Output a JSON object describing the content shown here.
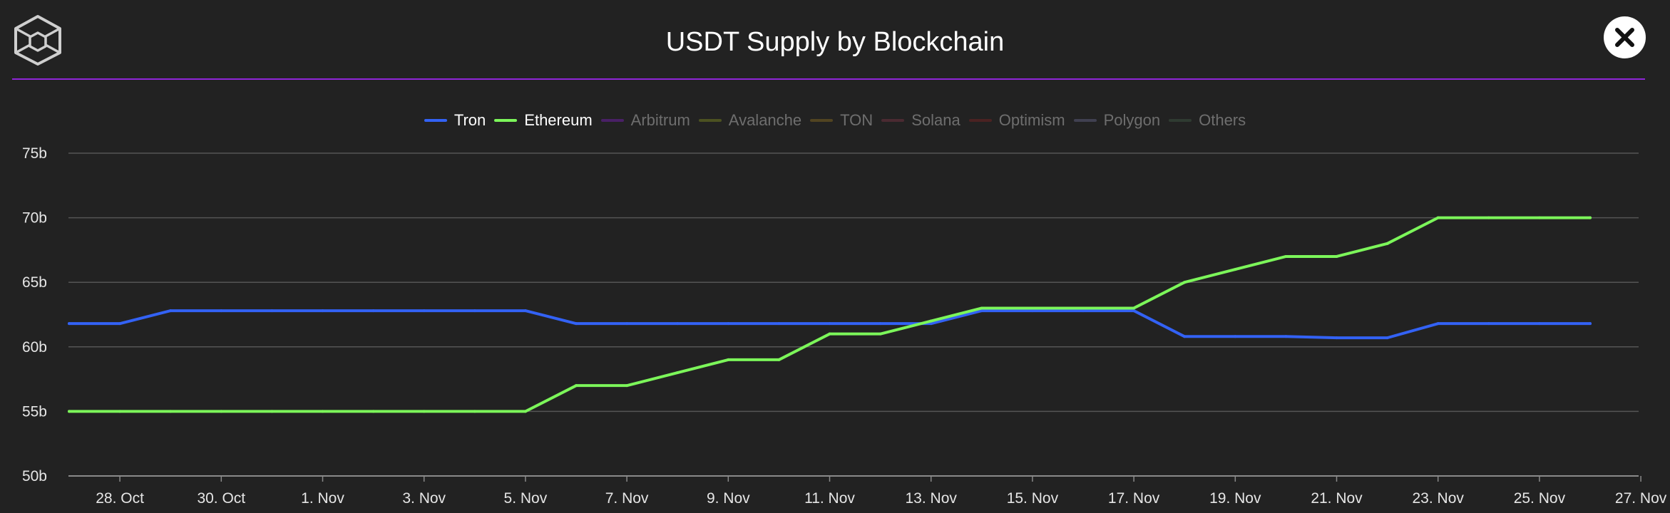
{
  "header": {
    "title": "USDT Supply by Blockchain",
    "logo_icon": "cube-logo-icon",
    "close_icon": "close-icon"
  },
  "colors": {
    "background": "#222222",
    "divider": "#8f25d8",
    "tron": "#3362f5",
    "ethereum": "#7cf65a",
    "gridline": "#555555",
    "axis_text": "#e6e6e6"
  },
  "legend": [
    {
      "name": "Tron",
      "color": "#3362f5",
      "active": true
    },
    {
      "name": "Ethereum",
      "color": "#7cf65a",
      "active": true
    },
    {
      "name": "Arbitrum",
      "color": "#6a1f9e",
      "active": false
    },
    {
      "name": "Avalanche",
      "color": "#6f7a20",
      "active": false
    },
    {
      "name": "TON",
      "color": "#7a6020",
      "active": false
    },
    {
      "name": "Solana",
      "color": "#6e3240",
      "active": false
    },
    {
      "name": "Optimism",
      "color": "#6e2222",
      "active": false
    },
    {
      "name": "Polygon",
      "color": "#5a5a78",
      "active": false
    },
    {
      "name": "Others",
      "color": "#3a5040",
      "active": false
    }
  ],
  "chart_data": {
    "type": "line",
    "title": "USDT Supply by Blockchain",
    "xlabel": "",
    "ylabel": "",
    "ylim": [
      50,
      75
    ],
    "y_ticks": [
      50,
      55,
      60,
      65,
      70,
      75
    ],
    "y_tick_labels": [
      "50b",
      "55b",
      "60b",
      "65b",
      "70b",
      "75b"
    ],
    "x_start_day": 27,
    "x_end_day": 58,
    "x_ticks": [
      {
        "label": "28. Oct",
        "day": 28
      },
      {
        "label": "30. Oct",
        "day": 30
      },
      {
        "label": "1. Nov",
        "day": 32
      },
      {
        "label": "3. Nov",
        "day": 34
      },
      {
        "label": "5. Nov",
        "day": 36
      },
      {
        "label": "7. Nov",
        "day": 38
      },
      {
        "label": "9. Nov",
        "day": 40
      },
      {
        "label": "11. Nov",
        "day": 42
      },
      {
        "label": "13. Nov",
        "day": 44
      },
      {
        "label": "15. Nov",
        "day": 46
      },
      {
        "label": "17. Nov",
        "day": 48
      },
      {
        "label": "19. Nov",
        "day": 50
      },
      {
        "label": "21. Nov",
        "day": 52
      },
      {
        "label": "23. Nov",
        "day": 54
      },
      {
        "label": "25. Nov",
        "day": 56
      },
      {
        "label": "27. Nov",
        "day": 58
      }
    ],
    "x_days": [
      27,
      28,
      29,
      30,
      31,
      32,
      33,
      34,
      35,
      36,
      37,
      38,
      39,
      40,
      41,
      42,
      43,
      44,
      45,
      46,
      47,
      48,
      49,
      50,
      51,
      52,
      53,
      54,
      55,
      56,
      57
    ],
    "series": [
      {
        "name": "Tron",
        "color": "#3362f5",
        "values": [
          61.8,
          61.8,
          62.8,
          62.8,
          62.8,
          62.8,
          62.8,
          62.8,
          62.8,
          62.8,
          61.8,
          61.8,
          61.8,
          61.8,
          61.8,
          61.8,
          61.8,
          61.8,
          62.8,
          62.8,
          62.8,
          62.8,
          60.8,
          60.8,
          60.8,
          60.7,
          60.7,
          61.8,
          61.8,
          61.8,
          61.8
        ]
      },
      {
        "name": "Ethereum",
        "color": "#7cf65a",
        "values": [
          55,
          55,
          55,
          55,
          55,
          55,
          55,
          55,
          55,
          55,
          57,
          57,
          58,
          59,
          59,
          61,
          61,
          62,
          63,
          63,
          63,
          63,
          65,
          66,
          67,
          67,
          68,
          70,
          70,
          70,
          70
        ]
      }
    ]
  }
}
